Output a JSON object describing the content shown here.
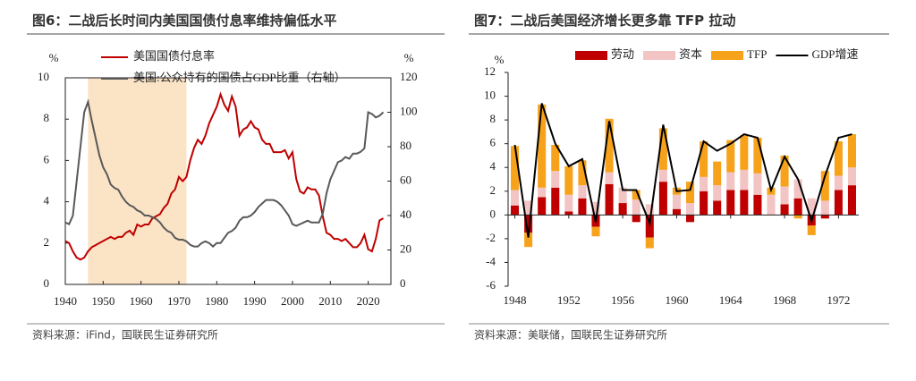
{
  "chart_data": [
    {
      "type": "line",
      "title": "图6：二战后长时间内美国国债付息率维持偏低水平",
      "source": "资料来源：iFind，国联民生证券研究所",
      "y_unit": "%",
      "y2_unit": "%",
      "x": [
        1940,
        1941,
        1942,
        1943,
        1944,
        1945,
        1946,
        1947,
        1948,
        1949,
        1950,
        1951,
        1952,
        1953,
        1954,
        1955,
        1956,
        1957,
        1958,
        1959,
        1960,
        1961,
        1962,
        1963,
        1964,
        1965,
        1966,
        1967,
        1968,
        1969,
        1970,
        1971,
        1972,
        1973,
        1974,
        1975,
        1976,
        1977,
        1978,
        1979,
        1980,
        1981,
        1982,
        1983,
        1984,
        1985,
        1986,
        1987,
        1988,
        1989,
        1990,
        1991,
        1992,
        1993,
        1994,
        1995,
        1996,
        1997,
        1998,
        1999,
        2000,
        2001,
        2002,
        2003,
        2004,
        2005,
        2006,
        2007,
        2008,
        2009,
        2010,
        2011,
        2012,
        2013,
        2014,
        2015,
        2016,
        2017,
        2018,
        2019,
        2020,
        2021,
        2022,
        2023,
        2024
      ],
      "xlim": [
        1940,
        2026
      ],
      "xticks": [
        1940,
        1950,
        1960,
        1970,
        1980,
        1990,
        2000,
        2010,
        2020
      ],
      "ylim": [
        0,
        10
      ],
      "yticks": [
        0,
        2,
        4,
        6,
        8,
        10
      ],
      "y2lim": [
        0,
        120
      ],
      "y2ticks": [
        0,
        20,
        40,
        60,
        80,
        100,
        120
      ],
      "highlight_range": [
        1946,
        1972
      ],
      "highlight_color": "#fbe3c6",
      "legend": "upper left",
      "series": [
        {
          "name": "美国国债付息率",
          "color": "#c00000",
          "values": [
            2.1,
            2.0,
            1.6,
            1.3,
            1.2,
            1.3,
            1.6,
            1.8,
            1.9,
            2.0,
            2.1,
            2.2,
            2.3,
            2.2,
            2.3,
            2.3,
            2.5,
            2.6,
            2.4,
            2.9,
            2.8,
            2.9,
            2.9,
            3.2,
            3.3,
            3.4,
            3.7,
            3.9,
            4.4,
            4.6,
            5.2,
            5.0,
            5.2,
            6.0,
            6.6,
            7.0,
            6.8,
            7.2,
            7.8,
            8.2,
            8.6,
            9.2,
            8.7,
            8.4,
            9.1,
            8.6,
            7.2,
            7.5,
            7.6,
            7.9,
            7.6,
            7.5,
            7.0,
            6.8,
            6.8,
            6.4,
            6.4,
            6.4,
            6.5,
            6.1,
            6.4,
            5.1,
            4.5,
            4.4,
            4.7,
            4.6,
            4.6,
            4.3,
            3.3,
            2.5,
            2.4,
            2.2,
            2.2,
            2.1,
            2.2,
            2.0,
            1.8,
            1.8,
            2.0,
            2.4,
            1.7,
            1.6,
            2.2,
            3.1,
            3.2
          ]
        },
        {
          "name": "美国:公众持有的国债占GDP比重（右轴）",
          "color": "#595959",
          "axis": "y2",
          "values": [
            36,
            35,
            40,
            60,
            80,
            100,
            106,
            95,
            85,
            75,
            68,
            64,
            58,
            56,
            55,
            51,
            48,
            46,
            45,
            43,
            42,
            40,
            40,
            39,
            38,
            36,
            33,
            31,
            30,
            27,
            26,
            26,
            25,
            23,
            22,
            22,
            24,
            25,
            24,
            22,
            24,
            24,
            27,
            30,
            31,
            33,
            37,
            39,
            39,
            40,
            42,
            45,
            47,
            49,
            49,
            49,
            48,
            46,
            43,
            40,
            35,
            34,
            35,
            36,
            37,
            36,
            36,
            36,
            41,
            53,
            61,
            66,
            71,
            72,
            74,
            73,
            76,
            76,
            77,
            79,
            100,
            99,
            97,
            98,
            100
          ]
        }
      ]
    },
    {
      "type": "bar",
      "stacked": true,
      "title": "图7：二战后美国经济增长更多靠 TFP 拉动",
      "source": "资料来源：美联储，国联民生证券研究所",
      "y_unit": "%",
      "categories": [
        "1948",
        null,
        null,
        null,
        "1952",
        null,
        null,
        null,
        "1956",
        null,
        null,
        null,
        "1960",
        null,
        null,
        null,
        "1964",
        null,
        null,
        null,
        "1968",
        null,
        null,
        null,
        "1972",
        null
      ],
      "ylim": [
        -6,
        12
      ],
      "yticks": [
        -6,
        -4,
        -2,
        0,
        2,
        4,
        6,
        8,
        10,
        12
      ],
      "legend": "top",
      "series": [
        {
          "name": "劳动",
          "color": "#c00000",
          "values": [
            0.8,
            -1.5,
            1.5,
            2.3,
            0.3,
            1.4,
            -1.0,
            2.6,
            1.0,
            -0.6,
            -1.9,
            2.8,
            0.5,
            -0.6,
            2.0,
            1.2,
            2.1,
            2.1,
            1.7,
            0.0,
            0.9,
            1.4,
            -0.9,
            -0.3,
            2.1,
            2.5
          ]
        },
        {
          "name": "资本",
          "color": "#f2c4c4",
          "values": [
            1.3,
            1.2,
            0.8,
            1.4,
            1.4,
            1.1,
            1.1,
            1.0,
            1.3,
            1.3,
            0.9,
            1.0,
            1.2,
            1.0,
            1.2,
            1.3,
            1.5,
            1.7,
            1.8,
            1.7,
            1.5,
            1.6,
            1.4,
            1.2,
            1.2,
            1.5
          ]
        },
        {
          "name": "TFP",
          "color": "#f7a21b",
          "values": [
            3.7,
            -1.2,
            7.0,
            2.2,
            2.4,
            2.1,
            -0.8,
            4.5,
            0.0,
            0.8,
            -0.9,
            3.5,
            0.6,
            1.8,
            3.0,
            2.0,
            2.7,
            2.9,
            3.0,
            0.6,
            2.6,
            -0.3,
            -0.8,
            2.5,
            2.9,
            2.8
          ]
        },
        {
          "name": "GDP增速",
          "color": "#000000",
          "type": "line",
          "values": [
            5.9,
            -1.9,
            9.4,
            6.0,
            4.1,
            4.7,
            -0.6,
            7.9,
            2.1,
            2.1,
            -0.7,
            7.6,
            2.0,
            2.1,
            6.2,
            5.4,
            6.0,
            6.8,
            6.5,
            2.1,
            4.9,
            3.0,
            -0.5,
            3.3,
            6.5,
            6.8
          ]
        }
      ]
    }
  ]
}
